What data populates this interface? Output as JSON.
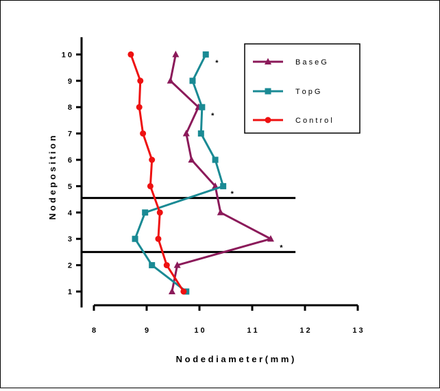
{
  "chart_data": {
    "type": "line",
    "xlabel": "N o d e  d i a m e t e r  ( m m )",
    "ylabel": "N o d e  p o s i t i o n",
    "xlim": [
      8,
      13
    ],
    "ylim": [
      0.5,
      10.5
    ],
    "xticks": [
      8,
      9,
      10,
      11,
      12,
      13
    ],
    "xtick_labels": [
      "8",
      "9",
      "1 0",
      "1 1",
      "1 2",
      "1 3"
    ],
    "yticks": [
      1,
      2,
      3,
      4,
      5,
      6,
      7,
      8,
      9,
      10
    ],
    "ytick_labels": [
      "1",
      "2",
      "3",
      "4",
      "5",
      "6",
      "7",
      "8",
      "9",
      "1 0"
    ],
    "legend_position": "top-right",
    "series": [
      {
        "name": "B a s e  G",
        "color": "#8b1a5a",
        "marker": "triangle",
        "points": [
          [
            9.48,
            1
          ],
          [
            9.58,
            2
          ],
          [
            11.35,
            3
          ],
          [
            10.4,
            4
          ],
          [
            10.3,
            5
          ],
          [
            9.85,
            6
          ],
          [
            9.75,
            7
          ],
          [
            9.98,
            8
          ],
          [
            9.45,
            9
          ],
          [
            9.55,
            10
          ]
        ]
      },
      {
        "name": "T o p  G",
        "color": "#1a8a94",
        "marker": "square",
        "points": [
          [
            9.75,
            1
          ],
          [
            9.1,
            2
          ],
          [
            8.78,
            3
          ],
          [
            8.97,
            4
          ],
          [
            10.45,
            5
          ],
          [
            10.3,
            6
          ],
          [
            10.03,
            7
          ],
          [
            10.05,
            8
          ],
          [
            9.87,
            9
          ],
          [
            10.12,
            10
          ]
        ]
      },
      {
        "name": "C o n t r o l",
        "color": "#ee1111",
        "marker": "circle",
        "points": [
          [
            9.7,
            1
          ],
          [
            9.38,
            2
          ],
          [
            9.22,
            3
          ],
          [
            9.25,
            4
          ],
          [
            9.07,
            5
          ],
          [
            9.1,
            6
          ],
          [
            8.93,
            7
          ],
          [
            8.86,
            8
          ],
          [
            8.88,
            9
          ],
          [
            8.7,
            10
          ]
        ]
      }
    ],
    "reference_lines": [
      {
        "y": 4.55,
        "x_from": 8,
        "x_to": 11.82
      },
      {
        "y": 2.5,
        "x_from": 8,
        "x_to": 11.82
      }
    ],
    "annotations": [
      {
        "text": "*",
        "x": 10.33,
        "y": 9.75
      },
      {
        "text": "*",
        "x": 10.25,
        "y": 7.75
      },
      {
        "text": "*",
        "x": 10.62,
        "y": 4.78
      },
      {
        "text": "*",
        "x": 11.55,
        "y": 2.73
      }
    ]
  }
}
